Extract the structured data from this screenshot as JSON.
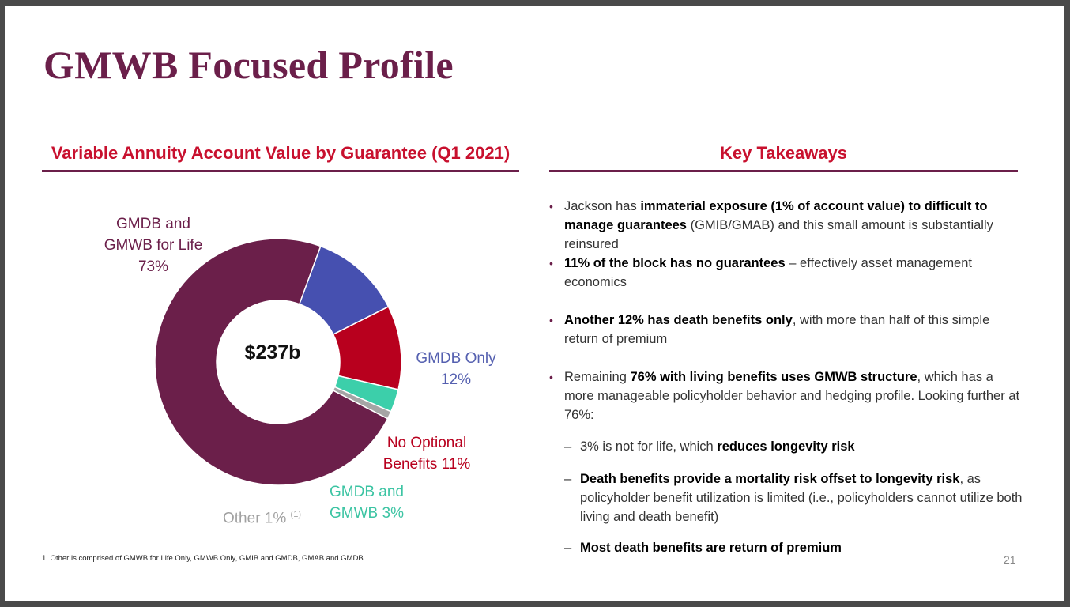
{
  "slide": {
    "title": "GMWB Focused Profile",
    "page_number": "21"
  },
  "left_panel": {
    "heading": "Variable Annuity Account Value by Guarantee (Q1 2021)",
    "center_value": "$237b",
    "footnote": "1. Other is comprised of GMWB for Life Only, GMWB Only, GMIB and GMDB, GMAB and GMDB"
  },
  "chart_data": {
    "type": "pie",
    "hole": "donut",
    "center_label": "$237b",
    "slices": [
      {
        "name": "GMDB and GMWB for Life",
        "label_lines": [
          "GMDB and",
          "GMWB for Life",
          "73%"
        ],
        "value": 73,
        "color": "#6b1f4a"
      },
      {
        "name": "GMDB Only",
        "label_lines": [
          "GMDB Only",
          "12%"
        ],
        "value": 12,
        "color": "#4650b0"
      },
      {
        "name": "No Optional Benefits",
        "label_lines": [
          "No Optional",
          "Benefits 11%"
        ],
        "value": 11,
        "color": "#b8001e"
      },
      {
        "name": "GMDB and GMWB",
        "label_lines": [
          "GMDB and",
          "GMWB 3%"
        ],
        "value": 3,
        "color": "#3ccfaa"
      },
      {
        "name": "Other",
        "label_lines": [
          "Other 1%"
        ],
        "footnote_mark": "(1)",
        "value": 1,
        "color": "#a5a5a5"
      }
    ]
  },
  "right_panel": {
    "heading": "Key Takeaways",
    "bullets": [
      {
        "pre": "Jackson has ",
        "bold": "immaterial exposure (1% of account value) to difficult to manage guarantees",
        "post": " (GMIB/GMAB) and this small amount is substantially reinsured"
      },
      {
        "pre": "",
        "bold": "11% of the block has no guarantees",
        "post": " – effectively asset management economics"
      },
      {
        "pre": "",
        "bold": "Another 12% has death benefits only",
        "post": ", with more than half of this simple return of premium"
      },
      {
        "pre": "Remaining ",
        "bold": "76% with living benefits uses GMWB structure",
        "post": ", which has a more manageable policyholder behavior and hedging profile.  Looking further at 76%:"
      }
    ],
    "sub_bullets": [
      {
        "pre": "3% is not for life, which ",
        "bold": "reduces longevity risk",
        "post": ""
      },
      {
        "pre": "",
        "bold": "Death benefits provide a mortality risk offset to longevity risk",
        "post": ", as policyholder benefit utilization is limited (i.e., policyholders cannot utilize both living and death benefit)"
      },
      {
        "pre": "",
        "bold": "Most death benefits are return of premium",
        "post": ""
      }
    ]
  }
}
